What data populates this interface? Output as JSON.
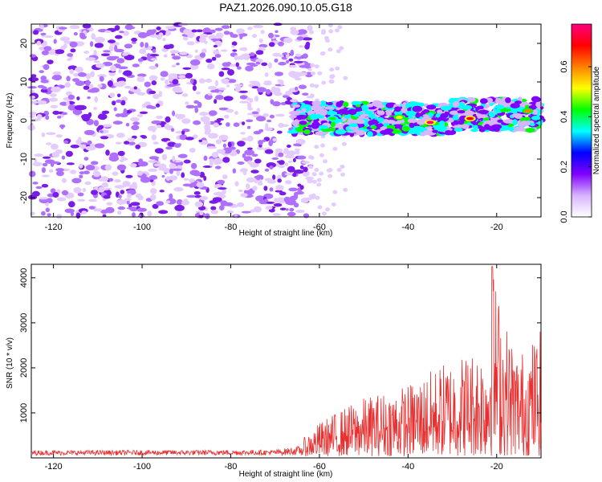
{
  "title": "PAZ1.2026.090.10.05.G18",
  "spectrogram": {
    "type": "heatmap",
    "xlabel": "Height of straight line (km)",
    "ylabel": "Frequency (Hz)",
    "xlim": [
      -125,
      -10
    ],
    "ylim": [
      -25,
      25
    ],
    "xticks": [
      -120,
      -100,
      -80,
      -60,
      -40,
      -20
    ],
    "yticks": [
      -20,
      -10,
      0,
      10,
      20
    ],
    "signal_band_hz": [
      -4,
      5
    ],
    "noise_region_km": [
      -125,
      -62
    ],
    "transition_km": -62,
    "hot_spots": [
      {
        "x": -35,
        "y": -0.5,
        "amplitude": 0.75
      },
      {
        "x": -26,
        "y": 0.5,
        "amplitude": 0.7
      },
      {
        "x": -13,
        "y": 2.5,
        "amplitude": 0.6
      },
      {
        "x": -42,
        "y": 0.8,
        "amplitude": 0.55
      },
      {
        "x": -57,
        "y": 0.5,
        "amplitude": 0.45
      }
    ]
  },
  "colorbar": {
    "label": "Normalized spectral amplitude",
    "range": [
      0,
      0.77
    ],
    "ticks": [
      0.0,
      0.2,
      0.4,
      0.6
    ],
    "tick_labels": [
      "0.0",
      "0.2",
      "0.4",
      "0.6"
    ],
    "colors": [
      "#ffffff",
      "#d8b4ff",
      "#8000ff",
      "#0000ff",
      "#00ffff",
      "#00ff00",
      "#ffff00",
      "#ff8000",
      "#ff0000",
      "#ff0080"
    ]
  },
  "snr": {
    "type": "line",
    "xlabel": "Height of straight line (km)",
    "ylabel": "SNR (10 * v/v)",
    "xlim": [
      -125,
      -10
    ],
    "ylim": [
      0,
      4300
    ],
    "xticks": [
      -120,
      -100,
      -80,
      -60,
      -40,
      -20
    ],
    "yticks": [
      1000,
      2000,
      3000,
      4000
    ],
    "color": "#e83030",
    "envelope": [
      {
        "x": -125,
        "y": 180
      },
      {
        "x": -70,
        "y": 200
      },
      {
        "x": -64,
        "y": 350
      },
      {
        "x": -60,
        "y": 750
      },
      {
        "x": -55,
        "y": 1050
      },
      {
        "x": -50,
        "y": 1300
      },
      {
        "x": -45,
        "y": 1450
      },
      {
        "x": -40,
        "y": 1600
      },
      {
        "x": -35,
        "y": 1900
      },
      {
        "x": -30,
        "y": 2200
      },
      {
        "x": -25,
        "y": 2400
      },
      {
        "x": -22,
        "y": 2500
      },
      {
        "x": -21,
        "y": 4250
      },
      {
        "x": -18,
        "y": 3000
      },
      {
        "x": -15,
        "y": 2300
      },
      {
        "x": -12,
        "y": 2600
      },
      {
        "x": -10,
        "y": 2800
      }
    ]
  }
}
